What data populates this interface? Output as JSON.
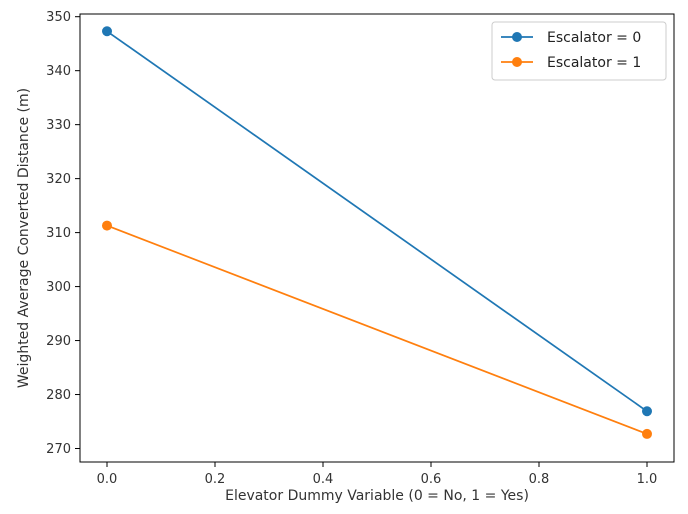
{
  "chart_data": {
    "type": "line",
    "xlabel": "Elevator Dummy Variable (0 = No, 1 = Yes)",
    "ylabel": "Weighted Average Converted Distance (m)",
    "xlim": [
      -0.05,
      1.05
    ],
    "ylim": [
      267.5,
      350.5
    ],
    "x_ticks": [
      0.0,
      0.2,
      0.4,
      0.6,
      0.8,
      1.0
    ],
    "x_tick_labels": [
      "0.0",
      "0.2",
      "0.4",
      "0.6",
      "0.8",
      "1.0"
    ],
    "y_ticks": [
      270,
      280,
      290,
      300,
      310,
      320,
      330,
      340,
      350
    ],
    "y_tick_labels": [
      "270",
      "280",
      "290",
      "300",
      "310",
      "320",
      "330",
      "340",
      "350"
    ],
    "grid": false,
    "legend_position": "top-right",
    "series": [
      {
        "name": "Escalator = 0",
        "color": "#1f77b4",
        "x": [
          0,
          1
        ],
        "y": [
          347.3,
          276.9
        ]
      },
      {
        "name": "Escalator = 1",
        "color": "#ff7f0e",
        "x": [
          0,
          1
        ],
        "y": [
          311.3,
          272.7
        ]
      }
    ]
  }
}
